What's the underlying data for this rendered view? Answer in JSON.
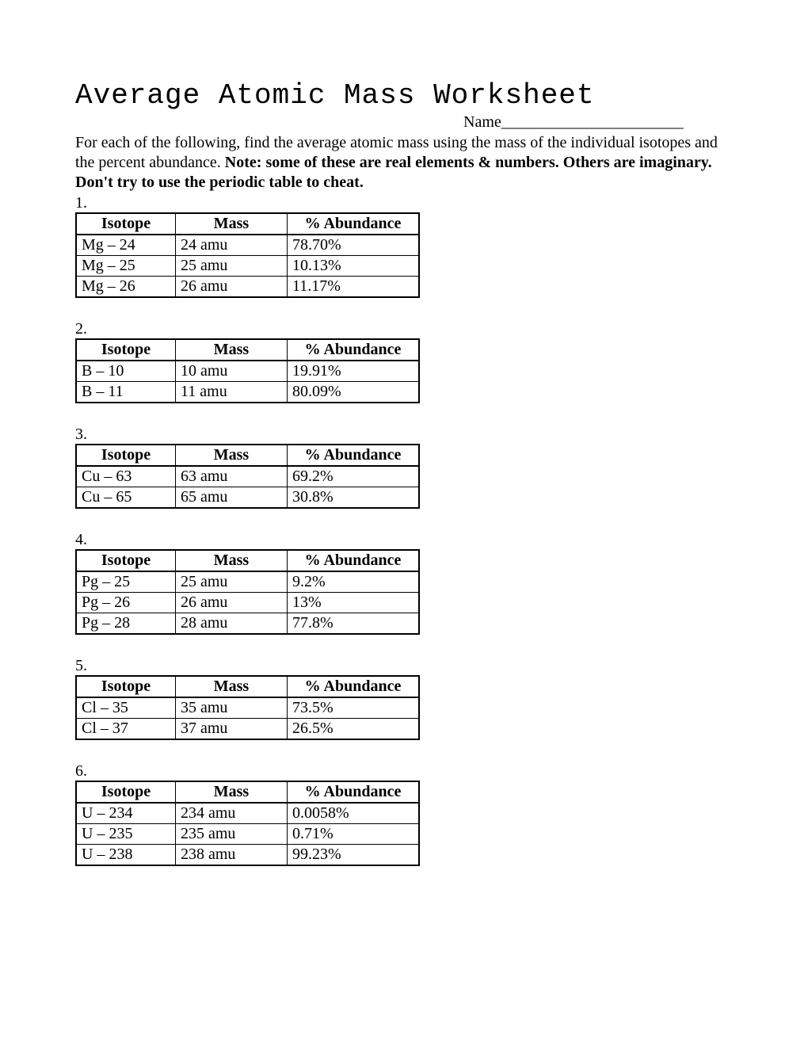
{
  "title": "Average Atomic Mass Worksheet",
  "name_label": "Name_______________________",
  "intro_part1": "For each of the following, find the average atomic mass using the mass of the individual isotopes and the percent abundance.  ",
  "intro_bold": "Note:  some of these are real elements & numbers.  Others are imaginary.  Don't try to use the periodic table to cheat.",
  "headers": {
    "isotope": "Isotope",
    "mass": "Mass",
    "abundance": "% Abundance"
  },
  "problems": [
    {
      "num": "1.",
      "rows": [
        {
          "isotope": "Mg – 24",
          "mass": "24 amu",
          "abundance": "78.70%"
        },
        {
          "isotope": "Mg – 25",
          "mass": "25 amu",
          "abundance": "10.13%"
        },
        {
          "isotope": "Mg – 26",
          "mass": "26 amu",
          "abundance": "11.17%"
        }
      ]
    },
    {
      "num": "2.",
      "rows": [
        {
          "isotope": "B – 10",
          "mass": "10 amu",
          "abundance": "19.91%"
        },
        {
          "isotope": "B – 11",
          "mass": "11 amu",
          "abundance": "80.09%"
        }
      ]
    },
    {
      "num": "3.",
      "rows": [
        {
          "isotope": "Cu – 63",
          "mass": "63 amu",
          "abundance": "69.2%"
        },
        {
          "isotope": "Cu – 65",
          "mass": "65 amu",
          "abundance": "30.8%"
        }
      ]
    },
    {
      "num": "4.",
      "rows": [
        {
          "isotope": "Pg – 25",
          "mass": "25 amu",
          "abundance": "9.2%"
        },
        {
          "isotope": "Pg – 26",
          "mass": "26 amu",
          "abundance": "13%"
        },
        {
          "isotope": "Pg – 28",
          "mass": "28 amu",
          "abundance": "77.8%"
        }
      ]
    },
    {
      "num": "5.",
      "rows": [
        {
          "isotope": "Cl – 35",
          "mass": "35 amu",
          "abundance": "73.5%"
        },
        {
          "isotope": "Cl – 37",
          "mass": "37 amu",
          "abundance": "26.5%"
        }
      ]
    },
    {
      "num": "6.",
      "rows": [
        {
          "isotope": "U – 234",
          "mass": "234 amu",
          "abundance": "0.0058%"
        },
        {
          "isotope": "U – 235",
          "mass": "235 amu",
          "abundance": "0.71%"
        },
        {
          "isotope": "U – 238",
          "mass": "238 amu",
          "abundance": "99.23%"
        }
      ]
    }
  ]
}
